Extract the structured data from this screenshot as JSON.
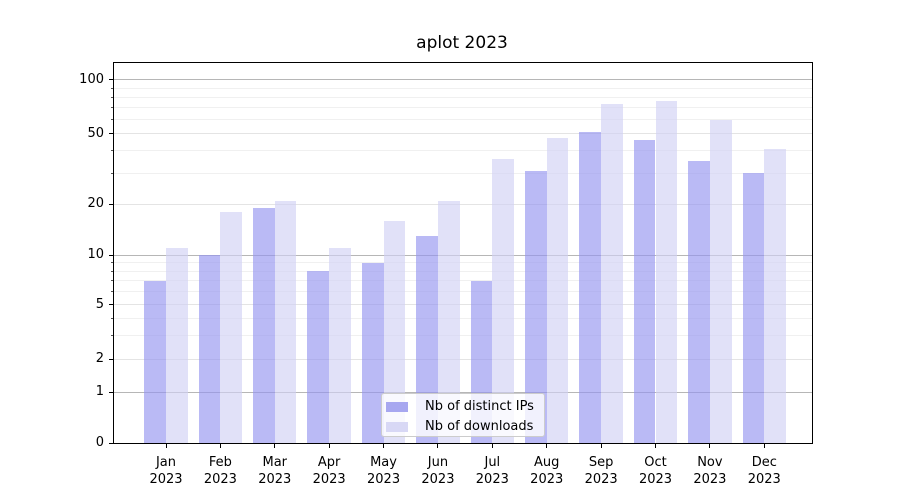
{
  "title": "aplot 2023",
  "legend": {
    "items": [
      {
        "label": "Nb of distinct IPs",
        "color": "#a7a7f0"
      },
      {
        "label": "Nb of downloads",
        "color": "#d8d8f5"
      }
    ],
    "position": "lower center"
  },
  "y_axis": {
    "tick_values": [
      0,
      1,
      2,
      5,
      10,
      20,
      50,
      100
    ],
    "tick_labels": [
      "0",
      "1",
      "2",
      "5",
      "10",
      "20",
      "50",
      "100"
    ],
    "minor_tick_values": [
      3,
      4,
      6,
      7,
      8,
      9,
      30,
      40,
      60,
      70,
      80,
      90
    ]
  },
  "x_axis": {
    "months": [
      "Jan",
      "Feb",
      "Mar",
      "Apr",
      "May",
      "Jun",
      "Jul",
      "Aug",
      "Sep",
      "Oct",
      "Nov",
      "Dec"
    ],
    "year": "2023"
  },
  "colors": {
    "ips_bar_rgba": "rgba(147,147,240,0.8)",
    "downloads_bar_rgba": "rgba(208,208,244,0.8)",
    "grid_major": "#b6b6b6",
    "grid_labeled": "#e4e4e4",
    "grid_minor": "#f0f0f0"
  },
  "chart_data": {
    "type": "bar",
    "title": "aplot 2023",
    "categories": [
      "Jan 2023",
      "Feb 2023",
      "Mar 2023",
      "Apr 2023",
      "May 2023",
      "Jun 2023",
      "Jul 2023",
      "Aug 2023",
      "Sep 2023",
      "Oct 2023",
      "Nov 2023",
      "Dec 2023"
    ],
    "series": [
      {
        "name": "Nb of distinct IPs",
        "values": [
          7,
          10,
          19,
          8,
          9,
          13,
          7,
          31,
          51,
          46,
          35,
          30
        ]
      },
      {
        "name": "Nb of downloads",
        "values": [
          11,
          18,
          21,
          11,
          16,
          21,
          36,
          47,
          73,
          76,
          60,
          41
        ]
      }
    ],
    "xlabel": "",
    "ylabel": "",
    "yscale": "asinh-like (logarithmic above 1, compressed linear 0-1)",
    "y_ticks": [
      0,
      1,
      2,
      5,
      10,
      20,
      50,
      100
    ],
    "ylim": [
      0,
      127
    ],
    "grid": true,
    "legend_position": "lower center"
  }
}
